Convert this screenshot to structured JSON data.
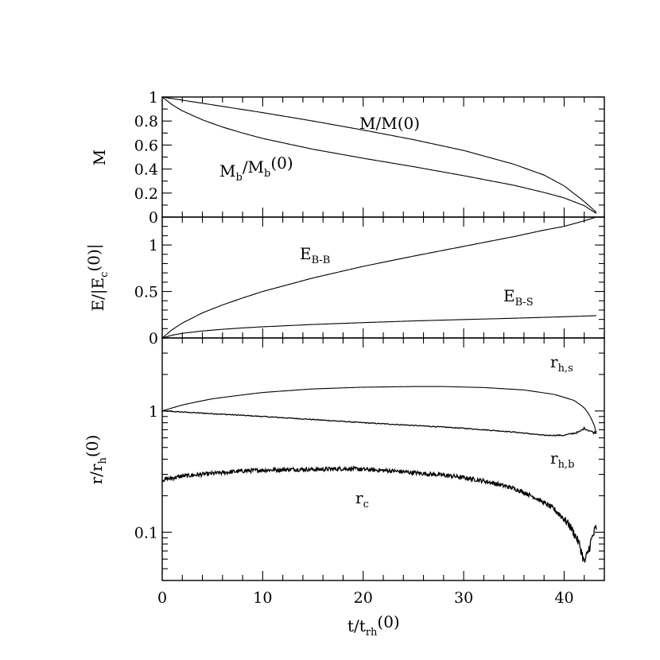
{
  "chart_data": [
    {
      "type": "line",
      "panel": "top",
      "ylabel": "M",
      "xlim": [
        0,
        44
      ],
      "ylim": [
        0,
        1
      ],
      "yticks": [
        0,
        0.2,
        0.4,
        0.6,
        0.8,
        1
      ],
      "ytick_labels": [
        "0",
        "0.2",
        "0.4",
        "0.6",
        "0.8",
        "1"
      ],
      "series": [
        {
          "name": "M/M(0)",
          "label": {
            "main": "M/M(0)",
            "sub": ""
          },
          "x": [
            0,
            5,
            10,
            15,
            20,
            25,
            30,
            35,
            38,
            40,
            42,
            43.2
          ],
          "y": [
            1.0,
            0.935,
            0.87,
            0.8,
            0.725,
            0.645,
            0.555,
            0.44,
            0.35,
            0.26,
            0.13,
            0.04
          ]
        },
        {
          "name": "Mb/Mb(0)",
          "label": {
            "main": "M",
            "sub": "b",
            "suffix": "/M",
            "sub2": "b",
            "tail": "(0)"
          },
          "x": [
            0,
            1,
            2,
            4,
            6,
            8,
            10,
            15,
            20,
            25,
            30,
            35,
            38,
            40,
            42,
            43.2
          ],
          "y": [
            1.0,
            0.935,
            0.885,
            0.81,
            0.75,
            0.7,
            0.655,
            0.565,
            0.49,
            0.42,
            0.345,
            0.265,
            0.205,
            0.16,
            0.095,
            0.03
          ]
        }
      ]
    },
    {
      "type": "line",
      "panel": "middle",
      "ylabel": "E/|Ec(0)|",
      "ylabel_parts": {
        "main": "E/|E",
        "sub": "c",
        "tail": "(0)|"
      },
      "xlim": [
        0,
        44
      ],
      "ylim": [
        0,
        1.3
      ],
      "yticks": [
        0,
        0.5,
        1
      ],
      "ytick_labels": [
        "0",
        "0.5",
        "1"
      ],
      "series": [
        {
          "name": "EB-B",
          "label": {
            "main": "E",
            "sub": "B-B"
          },
          "x": [
            0,
            1,
            2,
            4,
            6,
            8,
            10,
            15,
            20,
            25,
            30,
            35,
            38,
            40,
            42,
            43.2
          ],
          "y": [
            0.0,
            0.09,
            0.16,
            0.27,
            0.355,
            0.43,
            0.5,
            0.645,
            0.77,
            0.88,
            0.985,
            1.09,
            1.16,
            1.2,
            1.26,
            1.3
          ]
        },
        {
          "name": "EB-S",
          "label": {
            "main": "E",
            "sub": "B-S"
          },
          "x": [
            0,
            1,
            2,
            4,
            6,
            8,
            10,
            15,
            20,
            25,
            30,
            35,
            40,
            43.2
          ],
          "y": [
            0.0,
            0.03,
            0.05,
            0.075,
            0.093,
            0.108,
            0.12,
            0.145,
            0.165,
            0.183,
            0.198,
            0.212,
            0.228,
            0.24
          ]
        }
      ]
    },
    {
      "type": "line",
      "panel": "bottom",
      "yscale": "log",
      "xlabel": "t/trh(0)",
      "xlabel_parts": {
        "main": "t/t",
        "sub": "rh",
        "tail": "(0)"
      },
      "ylabel": "r/rh(0)",
      "ylabel_parts": {
        "main": "r/r",
        "sub": "h",
        "tail": "(0)"
      },
      "xlim": [
        0,
        44
      ],
      "ylim": [
        0.04,
        4.0
      ],
      "yticks": [
        0.1,
        1
      ],
      "ytick_labels": [
        "0.1",
        "1"
      ],
      "xticks": [
        0,
        10,
        20,
        30,
        40
      ],
      "xtick_labels": [
        "0",
        "10",
        "20",
        "30",
        "40"
      ],
      "series": [
        {
          "name": "rh,s",
          "label": {
            "main": "r",
            "sub": "h,s"
          },
          "x": [
            0,
            2,
            5,
            10,
            15,
            20,
            25,
            28,
            32,
            36,
            39,
            41,
            42,
            42.5,
            43,
            43.2
          ],
          "y": [
            1.0,
            1.12,
            1.26,
            1.42,
            1.52,
            1.57,
            1.59,
            1.59,
            1.56,
            1.49,
            1.37,
            1.22,
            1.06,
            0.93,
            0.76,
            0.65
          ]
        },
        {
          "name": "rh,b",
          "label": {
            "main": "r",
            "sub": "h,b"
          },
          "x": [
            0,
            5,
            10,
            15,
            20,
            25,
            30,
            35,
            38,
            40,
            41.5,
            42,
            42.5,
            43,
            43.2
          ],
          "y": [
            1.0,
            0.95,
            0.9,
            0.85,
            0.8,
            0.76,
            0.72,
            0.67,
            0.63,
            0.63,
            0.67,
            0.72,
            0.69,
            0.66,
            0.68
          ]
        },
        {
          "name": "rc",
          "label": {
            "main": "r",
            "sub": "c"
          },
          "x": [
            0,
            2,
            5,
            8,
            10,
            13,
            16,
            18,
            20,
            23,
            26,
            29,
            32,
            35,
            37,
            39,
            40.5,
            41.5,
            42,
            42.3,
            42.8,
            43.2
          ],
          "y": [
            0.27,
            0.29,
            0.305,
            0.32,
            0.325,
            0.33,
            0.33,
            0.335,
            0.33,
            0.32,
            0.305,
            0.29,
            0.265,
            0.23,
            0.195,
            0.155,
            0.115,
            0.08,
            0.056,
            0.065,
            0.09,
            0.11
          ]
        }
      ]
    }
  ]
}
